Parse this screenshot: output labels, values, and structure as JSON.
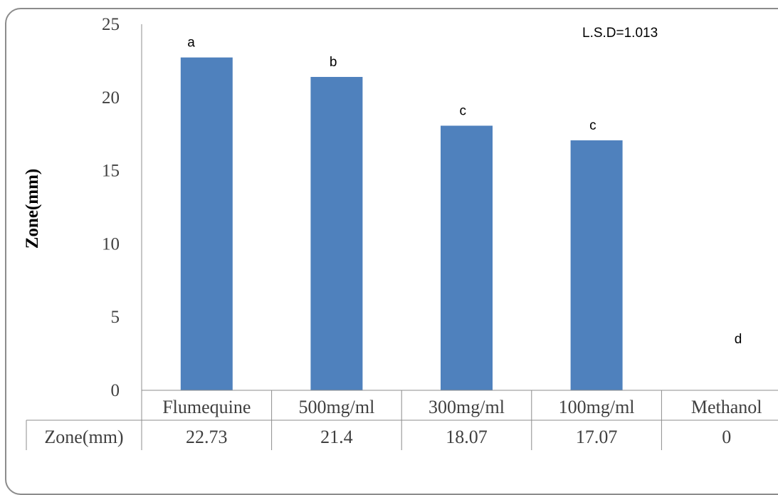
{
  "chart_data": {
    "type": "bar",
    "categories": [
      "Flumequine",
      "500mg/ml",
      "300mg/ml",
      "100mg/ml",
      "Methanol"
    ],
    "series": [
      {
        "name": "Zone(mm)",
        "values": [
          22.73,
          21.4,
          18.07,
          17.07,
          0
        ]
      }
    ],
    "letters": [
      "a",
      "b",
      "c",
      "c",
      "d"
    ],
    "table_row_label": "Zone(mm)",
    "table_values": [
      "22.73",
      "21.4",
      "18.07",
      "17.07",
      "0"
    ],
    "ylabel": "Zone(mm)",
    "ylim": [
      0,
      25
    ],
    "yticks": [
      0,
      5,
      10,
      15,
      20,
      25
    ],
    "annotation": "L.S.D=1.013",
    "bar_color": "#4f81bd",
    "grid": false,
    "legend": "none"
  }
}
